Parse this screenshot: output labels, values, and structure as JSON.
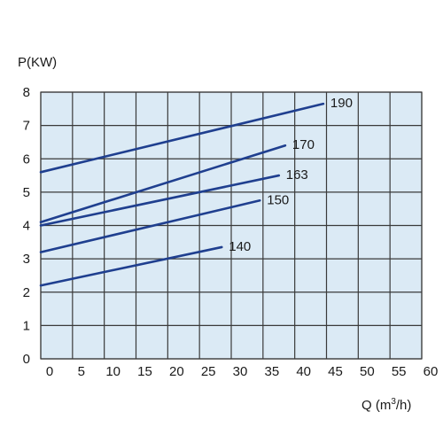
{
  "chart_data": {
    "type": "line",
    "ylabel": "P(KW)",
    "xlabel_main": "Q (m",
    "xlabel_sup": "3",
    "xlabel_tail": "/h)",
    "xlim": [
      0,
      60
    ],
    "ylim": [
      0,
      8
    ],
    "xticks": [
      "0",
      "5",
      "10",
      "15",
      "20",
      "25",
      "30",
      "35",
      "40",
      "45",
      "50",
      "55",
      "60"
    ],
    "yticks": [
      "0",
      "1",
      "2",
      "3",
      "4",
      "5",
      "6",
      "7",
      "8"
    ],
    "grid": true,
    "colors": {
      "plot_bg": "#dbeaf5",
      "grid": "#3a3a3a",
      "line": "#1f3f8f"
    },
    "series": [
      {
        "name": "190",
        "x": [
          -0.5,
          44.5
        ],
        "y": [
          5.6,
          7.65
        ]
      },
      {
        "name": "170",
        "x": [
          -0.5,
          38.5
        ],
        "y": [
          4.1,
          6.4
        ]
      },
      {
        "name": "163",
        "x": [
          -0.5,
          37.5
        ],
        "y": [
          4.0,
          5.5
        ]
      },
      {
        "name": "150",
        "x": [
          -0.5,
          34.5
        ],
        "y": [
          3.2,
          4.75
        ]
      },
      {
        "name": "140",
        "x": [
          -0.5,
          28.5
        ],
        "y": [
          2.2,
          3.35
        ]
      }
    ]
  }
}
